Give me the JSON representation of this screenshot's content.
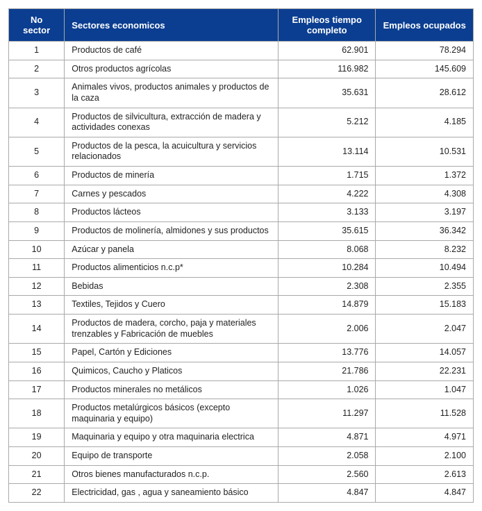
{
  "table": {
    "header_bg": "#0b3e91",
    "header_color": "#ffffff",
    "border_color": "#a9a9a9",
    "text_color": "#222222",
    "font_size": 12.5,
    "columns": [
      {
        "key": "no",
        "label": "No sector",
        "align": "center",
        "width": "12%"
      },
      {
        "key": "sector",
        "label": "Sectores economicos",
        "align": "left",
        "width": "46%"
      },
      {
        "key": "empleos_tc",
        "label": "Empleos tiempo completo",
        "align": "right",
        "width": "21%"
      },
      {
        "key": "empleos_oc",
        "label": "Empleos ocupados",
        "align": "right",
        "width": "21%"
      }
    ],
    "rows": [
      {
        "no": "1",
        "sector": "Productos de café",
        "empleos_tc": "62.901",
        "empleos_oc": "78.294"
      },
      {
        "no": "2",
        "sector": "Otros productos agrícolas",
        "empleos_tc": "116.982",
        "empleos_oc": "145.609"
      },
      {
        "no": "3",
        "sector": "Animales vivos, productos animales y productos de la caza",
        "empleos_tc": "35.631",
        "empleos_oc": "28.612"
      },
      {
        "no": "4",
        "sector": "Productos de silvicultura, extracción de madera y actividades conexas",
        "empleos_tc": "5.212",
        "empleos_oc": "4.185"
      },
      {
        "no": "5",
        "sector": "Productos de la pesca, la acuicultura y servicios relacionados",
        "empleos_tc": "13.114",
        "empleos_oc": "10.531"
      },
      {
        "no": "6",
        "sector": "Productos de minería",
        "empleos_tc": "1.715",
        "empleos_oc": "1.372"
      },
      {
        "no": "7",
        "sector": "Carnes y pescados",
        "empleos_tc": "4.222",
        "empleos_oc": "4.308"
      },
      {
        "no": "8",
        "sector": "Productos lácteos",
        "empleos_tc": "3.133",
        "empleos_oc": "3.197"
      },
      {
        "no": "9",
        "sector": "Productos de molinería, almidones y sus productos",
        "empleos_tc": "35.615",
        "empleos_oc": "36.342"
      },
      {
        "no": "10",
        "sector": "Azúcar y panela",
        "empleos_tc": "8.068",
        "empleos_oc": "8.232"
      },
      {
        "no": "11",
        "sector": "Productos alimenticios n.c.p*",
        "empleos_tc": "10.284",
        "empleos_oc": "10.494"
      },
      {
        "no": "12",
        "sector": "Bebidas",
        "empleos_tc": "2.308",
        "empleos_oc": "2.355"
      },
      {
        "no": "13",
        "sector": "Textiles, Tejidos y Cuero",
        "empleos_tc": "14.879",
        "empleos_oc": "15.183"
      },
      {
        "no": "14",
        "sector": "Productos de madera, corcho, paja y materiales trenzables y Fabricación de muebles",
        "empleos_tc": "2.006",
        "empleos_oc": "2.047"
      },
      {
        "no": "15",
        "sector": "Papel, Cartón y Ediciones",
        "empleos_tc": "13.776",
        "empleos_oc": "14.057"
      },
      {
        "no": "16",
        "sector": "Quimicos, Caucho y Platicos",
        "empleos_tc": "21.786",
        "empleos_oc": "22.231"
      },
      {
        "no": "17",
        "sector": "Productos minerales no metálicos",
        "empleos_tc": "1.026",
        "empleos_oc": "1.047"
      },
      {
        "no": "18",
        "sector": "Productos metalúrgicos básicos (excepto maquinaria y equipo)",
        "empleos_tc": "11.297",
        "empleos_oc": "11.528"
      },
      {
        "no": "19",
        "sector": "Maquinaria y equipo y otra maquinaria electrica",
        "empleos_tc": "4.871",
        "empleos_oc": "4.971"
      },
      {
        "no": "20",
        "sector": "Equipo de transporte",
        "empleos_tc": "2.058",
        "empleos_oc": "2.100"
      },
      {
        "no": "21",
        "sector": "Otros bienes manufacturados n.c.p.",
        "empleos_tc": "2.560",
        "empleos_oc": "2.613"
      },
      {
        "no": "22",
        "sector": "Electricidad, gas , agua y saneamiento básico",
        "empleos_tc": "4.847",
        "empleos_oc": "4.847"
      }
    ]
  }
}
